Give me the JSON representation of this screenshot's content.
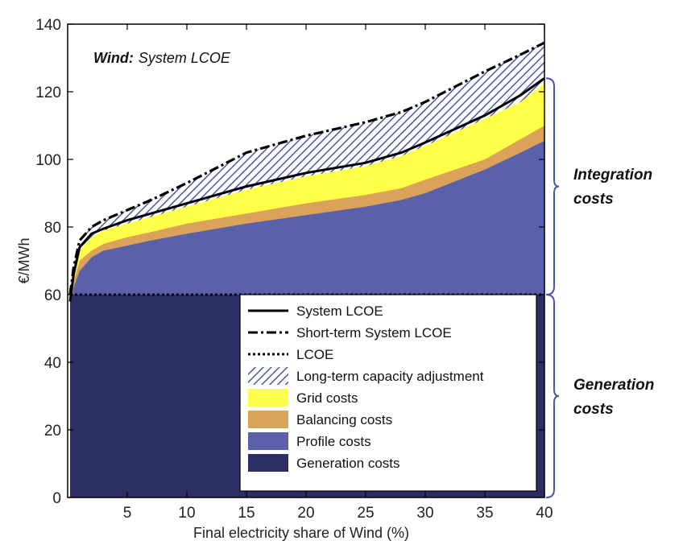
{
  "chart_data": {
    "type": "area",
    "title_bold": "Wind:",
    "title_rest": "System LCOE",
    "xlabel": "Final electricity share of Wind (%)",
    "ylabel": "€/MWh",
    "xlim": [
      0,
      40
    ],
    "ylim": [
      0,
      140
    ],
    "xticks": [
      5,
      10,
      15,
      20,
      25,
      30,
      35,
      40
    ],
    "yticks": [
      0,
      20,
      40,
      60,
      80,
      100,
      120,
      140
    ],
    "grid": false,
    "legend_position": "bottom-right inside",
    "x": [
      0.2,
      0.5,
      1,
      2,
      3,
      5,
      7,
      10,
      15,
      20,
      25,
      28,
      30,
      35,
      38,
      40
    ],
    "series": [
      {
        "name": "Generation costs",
        "kind": "area",
        "color": "#2b2f63",
        "values": [
          60,
          60,
          60,
          60,
          60,
          60,
          60,
          60,
          60,
          60,
          60,
          60,
          60,
          60,
          60,
          60
        ]
      },
      {
        "name": "Profile costs",
        "kind": "area",
        "color": "#5b61a8",
        "values": [
          56,
          62,
          67,
          71,
          73,
          74.5,
          76,
          78,
          81,
          83.5,
          86,
          88,
          90,
          97,
          102,
          105.5
        ]
      },
      {
        "name": "Balancing costs",
        "kind": "area",
        "color": "#dba25a",
        "values": [
          57,
          64,
          70,
          73,
          75,
          77,
          78.5,
          81,
          84,
          87,
          89.5,
          91.5,
          94,
          100,
          106,
          110
        ]
      },
      {
        "name": "Grid costs",
        "kind": "area",
        "color": "#ffff4a",
        "values": [
          58,
          66,
          73,
          77,
          79,
          81,
          83,
          86,
          91,
          95,
          98,
          101,
          104,
          112,
          117,
          122.5
        ]
      },
      {
        "name": "Long-term capacity adjustment",
        "kind": "hatch",
        "color": "#4a56a6",
        "values": [
          60,
          68,
          76,
          80,
          82,
          85,
          88,
          93,
          102,
          107,
          111,
          114,
          117,
          126,
          131,
          134.5
        ]
      }
    ],
    "lines": [
      {
        "name": "System LCOE",
        "style": "solid",
        "values": [
          58,
          66,
          74,
          78,
          79.5,
          82,
          84,
          87,
          92,
          96,
          99,
          102,
          105,
          113,
          119,
          124
        ]
      },
      {
        "name": "Short-term System LCOE",
        "style": "dashdot",
        "values": [
          60,
          68,
          76,
          80,
          82,
          85,
          88,
          93,
          102,
          107,
          111,
          114,
          117,
          126,
          131,
          134.5
        ]
      },
      {
        "name": "LCOE",
        "style": "dotted",
        "values": [
          60,
          60,
          60,
          60,
          60,
          60,
          60,
          60,
          60,
          60,
          60,
          60,
          60,
          60,
          60,
          60
        ]
      }
    ],
    "legend": [
      {
        "label": "System LCOE",
        "kind": "line-solid"
      },
      {
        "label": "Short-term System LCOE",
        "kind": "line-dashdot"
      },
      {
        "label": "LCOE",
        "kind": "line-dotted"
      },
      {
        "label": "Long-term capacity adjustment",
        "kind": "hatch",
        "color": "#4a56a6"
      },
      {
        "label": "Grid costs",
        "kind": "fill",
        "color": "#ffff4a"
      },
      {
        "label": "Balancing costs",
        "kind": "fill",
        "color": "#dba25a"
      },
      {
        "label": "Profile costs",
        "kind": "fill",
        "color": "#5b61a8"
      },
      {
        "label": "Generation costs",
        "kind": "fill",
        "color": "#2b2f63"
      }
    ],
    "annotations": {
      "integration": [
        "Integration",
        "costs"
      ],
      "generation": [
        "Generation",
        "costs"
      ],
      "integration_range": [
        60,
        124
      ],
      "generation_range": [
        0,
        60
      ]
    }
  }
}
